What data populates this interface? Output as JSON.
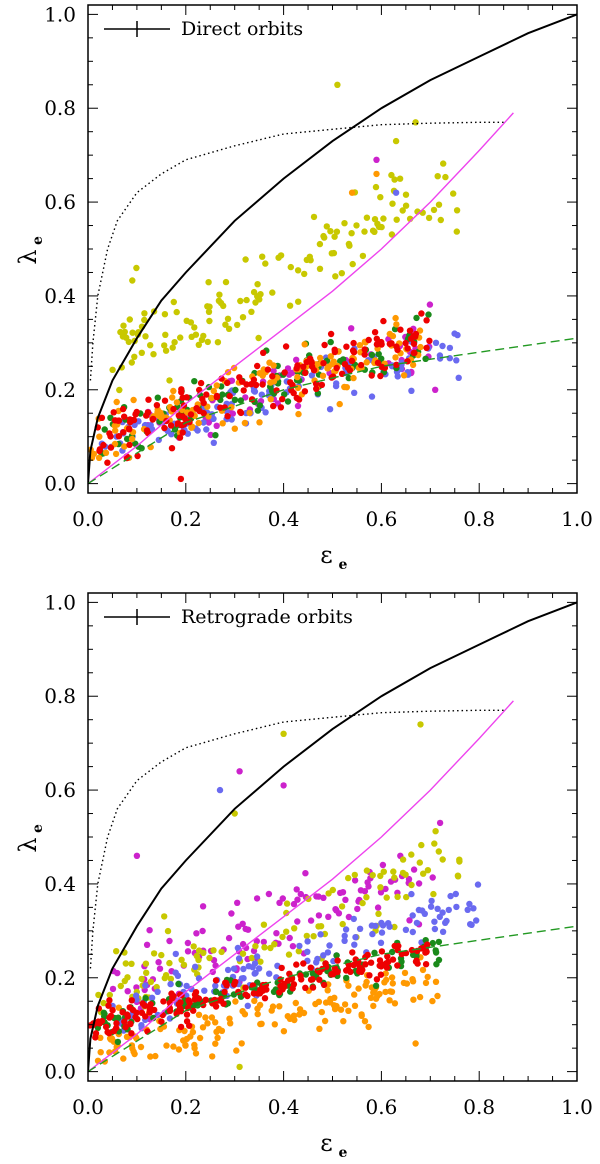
{
  "chart_data": [
    {
      "type": "scatter",
      "panel": "top",
      "legend_label": "Direct orbits",
      "legend_position": "top-left",
      "xlabel_symbol": "ε",
      "xlabel_sub": "e",
      "ylabel_symbol": "λ",
      "ylabel_sub": "e",
      "xlim": [
        0,
        1
      ],
      "ylim": [
        -0.02,
        1.02
      ],
      "xticks": [
        "0.0",
        "0.2",
        "0.4",
        "0.6",
        "0.8",
        "1.0"
      ],
      "yticks": [
        "0.0",
        "0.2",
        "0.4",
        "0.6",
        "0.8",
        "1.0"
      ],
      "lines": [
        {
          "name": "solid",
          "color": "#000000",
          "style": "solid",
          "x": [
            0,
            0.005,
            0.02,
            0.05,
            0.1,
            0.15,
            0.2,
            0.3,
            0.4,
            0.5,
            0.6,
            0.7,
            0.8,
            0.9,
            1.0
          ],
          "y": [
            0,
            0.07,
            0.14,
            0.22,
            0.31,
            0.39,
            0.45,
            0.56,
            0.65,
            0.73,
            0.8,
            0.86,
            0.91,
            0.96,
            1.0
          ]
        },
        {
          "name": "dotted",
          "color": "#000000",
          "style": "dotted",
          "x": [
            0.005,
            0.01,
            0.02,
            0.04,
            0.06,
            0.1,
            0.15,
            0.2,
            0.3,
            0.4,
            0.5,
            0.6,
            0.7,
            0.8,
            0.85
          ],
          "y": [
            0.22,
            0.3,
            0.4,
            0.5,
            0.56,
            0.62,
            0.66,
            0.69,
            0.72,
            0.745,
            0.755,
            0.765,
            0.768,
            0.77,
            0.77
          ]
        },
        {
          "name": "magenta",
          "color": "#ee44ee",
          "style": "solid",
          "x": [
            0,
            0.1,
            0.2,
            0.3,
            0.4,
            0.5,
            0.6,
            0.7,
            0.8,
            0.87
          ],
          "y": [
            0,
            0.08,
            0.17,
            0.25,
            0.33,
            0.41,
            0.5,
            0.6,
            0.71,
            0.79
          ]
        },
        {
          "name": "green-dashed",
          "color": "#229922",
          "style": "dashed",
          "x": [
            0,
            0.2,
            0.4,
            0.6,
            0.8,
            1.0
          ],
          "y": [
            0,
            0.13,
            0.2,
            0.25,
            0.28,
            0.31
          ]
        }
      ],
      "series": [
        {
          "name": "yellow",
          "color": "#c8c800",
          "n": 140,
          "x_range": [
            0.05,
            0.76
          ],
          "y_fn": "high",
          "seed": 11
        },
        {
          "name": "magenta",
          "color": "#cc22cc",
          "n": 60,
          "x_range": [
            0.1,
            0.7
          ],
          "y_fn": "mid",
          "seed": 23
        },
        {
          "name": "blue",
          "color": "#6a6af0",
          "n": 120,
          "x_range": [
            0.02,
            0.76
          ],
          "y_fn": "low",
          "seed": 37
        },
        {
          "name": "green",
          "color": "#1a8a1a",
          "n": 100,
          "x_range": [
            0.02,
            0.7
          ],
          "y_fn": "mid",
          "seed": 41
        },
        {
          "name": "orange",
          "color": "#ff9900",
          "n": 140,
          "x_range": [
            0.0,
            0.68
          ],
          "y_fn": "mid",
          "seed": 53
        },
        {
          "name": "red",
          "color": "#ee0000",
          "n": 170,
          "x_range": [
            0.02,
            0.7
          ],
          "y_fn": "mid",
          "seed": 67
        }
      ],
      "outliers": [
        {
          "x": 0.51,
          "y": 0.85,
          "color": "#c8c800"
        },
        {
          "x": 0.67,
          "y": 0.77,
          "color": "#c8c800"
        },
        {
          "x": 0.63,
          "y": 0.73,
          "color": "#c8c800"
        },
        {
          "x": 0.59,
          "y": 0.69,
          "color": "#cc22cc"
        },
        {
          "x": 0.59,
          "y": 0.66,
          "color": "#ff9900"
        },
        {
          "x": 0.54,
          "y": 0.62,
          "color": "#ff9900"
        },
        {
          "x": 0.63,
          "y": 0.62,
          "color": "#6a6af0"
        },
        {
          "x": 0.19,
          "y": 0.01,
          "color": "#ee0000"
        },
        {
          "x": 0.71,
          "y": 0.2,
          "color": "#cc22cc"
        }
      ]
    },
    {
      "type": "scatter",
      "panel": "bottom",
      "legend_label": "Retrograde orbits",
      "legend_position": "top-left",
      "xlabel_symbol": "ε",
      "xlabel_sub": "e",
      "ylabel_symbol": "λ",
      "ylabel_sub": "e",
      "xlim": [
        0,
        1
      ],
      "ylim": [
        -0.02,
        1.02
      ],
      "xticks": [
        "0.0",
        "0.2",
        "0.4",
        "0.6",
        "0.8",
        "1.0"
      ],
      "yticks": [
        "0.0",
        "0.2",
        "0.4",
        "0.6",
        "0.8",
        "1.0"
      ],
      "lines": [
        {
          "name": "solid",
          "color": "#000000",
          "style": "solid",
          "x": [
            0,
            0.005,
            0.02,
            0.05,
            0.1,
            0.15,
            0.2,
            0.3,
            0.4,
            0.5,
            0.6,
            0.7,
            0.8,
            0.9,
            1.0
          ],
          "y": [
            0,
            0.07,
            0.14,
            0.22,
            0.31,
            0.39,
            0.45,
            0.56,
            0.65,
            0.73,
            0.8,
            0.86,
            0.91,
            0.96,
            1.0
          ]
        },
        {
          "name": "dotted",
          "color": "#000000",
          "style": "dotted",
          "x": [
            0.005,
            0.01,
            0.02,
            0.04,
            0.06,
            0.1,
            0.15,
            0.2,
            0.3,
            0.4,
            0.5,
            0.6,
            0.7,
            0.8,
            0.85
          ],
          "y": [
            0.22,
            0.3,
            0.4,
            0.5,
            0.56,
            0.62,
            0.66,
            0.69,
            0.72,
            0.745,
            0.755,
            0.765,
            0.768,
            0.77,
            0.77
          ]
        },
        {
          "name": "magenta",
          "color": "#ee44ee",
          "style": "solid",
          "x": [
            0,
            0.1,
            0.2,
            0.3,
            0.4,
            0.5,
            0.6,
            0.7,
            0.8,
            0.87
          ],
          "y": [
            0,
            0.08,
            0.17,
            0.25,
            0.33,
            0.41,
            0.5,
            0.6,
            0.71,
            0.79
          ]
        },
        {
          "name": "green-dashed",
          "color": "#229922",
          "style": "dashed",
          "x": [
            0,
            0.2,
            0.4,
            0.6,
            0.8,
            1.0
          ],
          "y": [
            0,
            0.13,
            0.2,
            0.25,
            0.28,
            0.31
          ]
        }
      ],
      "series": [
        {
          "name": "magenta",
          "color": "#cc22cc",
          "n": 110,
          "x_range": [
            0.05,
            0.72
          ],
          "y_fn": "r_mag",
          "seed": 101
        },
        {
          "name": "yellow",
          "color": "#c8c800",
          "n": 110,
          "x_range": [
            0.02,
            0.76
          ],
          "y_fn": "r_yel",
          "seed": 113
        },
        {
          "name": "blue",
          "color": "#6a6af0",
          "n": 130,
          "x_range": [
            0.05,
            0.8
          ],
          "y_fn": "r_blue",
          "seed": 127
        },
        {
          "name": "orange",
          "color": "#ff9900",
          "n": 150,
          "x_range": [
            0.02,
            0.72
          ],
          "y_fn": "r_orange",
          "seed": 131
        },
        {
          "name": "green",
          "color": "#1a8a1a",
          "n": 110,
          "x_range": [
            0.02,
            0.72
          ],
          "y_fn": "r_red",
          "seed": 139
        },
        {
          "name": "red",
          "color": "#ee0000",
          "n": 190,
          "x_range": [
            0.0,
            0.7
          ],
          "y_fn": "r_red",
          "seed": 149
        }
      ],
      "outliers": [
        {
          "x": 0.4,
          "y": 0.72,
          "color": "#c8c800"
        },
        {
          "x": 0.68,
          "y": 0.74,
          "color": "#c8c800"
        },
        {
          "x": 0.31,
          "y": 0.64,
          "color": "#cc22cc"
        },
        {
          "x": 0.4,
          "y": 0.61,
          "color": "#cc22cc"
        },
        {
          "x": 0.27,
          "y": 0.6,
          "color": "#6a6af0"
        },
        {
          "x": 0.3,
          "y": 0.55,
          "color": "#c8c800"
        },
        {
          "x": 0.72,
          "y": 0.53,
          "color": "#cc22cc"
        },
        {
          "x": 0.1,
          "y": 0.46,
          "color": "#cc22cc"
        },
        {
          "x": 0.67,
          "y": 0.06,
          "color": "#ff9900"
        },
        {
          "x": 0.31,
          "y": 0.01,
          "color": "#c8c800"
        },
        {
          "x": 0.06,
          "y": 0.21,
          "color": "#cc22cc"
        }
      ]
    }
  ]
}
